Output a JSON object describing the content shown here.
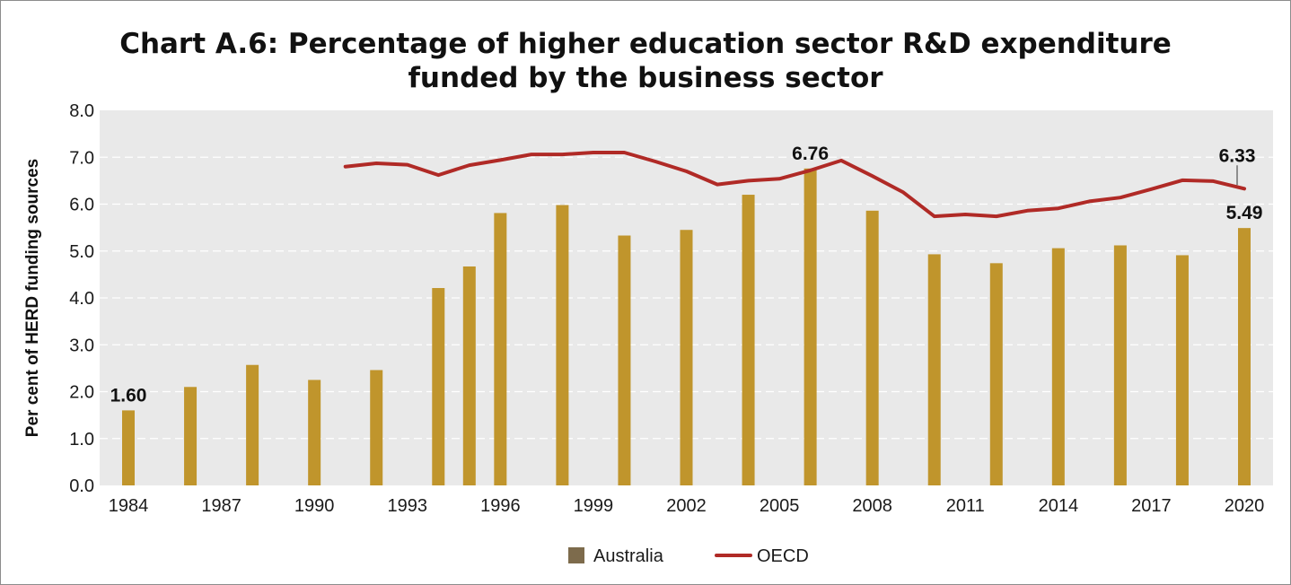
{
  "chart_data": {
    "type": "bar",
    "title": "Chart A.6: Percentage of higher education sector R&D expenditure funded by the business sector",
    "title_lines": [
      "Chart A.6: Percentage of higher education sector R&D expenditure",
      "funded by the business sector"
    ],
    "xlabel": "",
    "ylabel": "Per cent of HERD funding sources",
    "ylim": [
      0,
      8
    ],
    "yticks": [
      "0.0",
      "1.0",
      "2.0",
      "3.0",
      "4.0",
      "5.0",
      "6.0",
      "7.0",
      "8.0"
    ],
    "xlim": [
      1984,
      2020
    ],
    "xticks": [
      "1984",
      "1987",
      "1990",
      "1993",
      "1996",
      "1999",
      "2002",
      "2005",
      "2008",
      "2011",
      "2014",
      "2017",
      "2020"
    ],
    "grid": true,
    "legend_position": "bottom",
    "series": [
      {
        "name": "Australia",
        "type": "bar",
        "color": "#c0952c",
        "points": [
          {
            "x": 1984,
            "y": 1.6
          },
          {
            "x": 1986,
            "y": 2.1
          },
          {
            "x": 1988,
            "y": 2.57
          },
          {
            "x": 1990,
            "y": 2.25
          },
          {
            "x": 1992,
            "y": 2.46
          },
          {
            "x": 1994,
            "y": 4.21
          },
          {
            "x": 1995,
            "y": 4.67
          },
          {
            "x": 1996,
            "y": 5.81
          },
          {
            "x": 1998,
            "y": 5.98
          },
          {
            "x": 2000,
            "y": 5.33
          },
          {
            "x": 2002,
            "y": 5.45
          },
          {
            "x": 2004,
            "y": 6.2
          },
          {
            "x": 2006,
            "y": 6.76
          },
          {
            "x": 2008,
            "y": 5.86
          },
          {
            "x": 2010,
            "y": 4.93
          },
          {
            "x": 2012,
            "y": 4.74
          },
          {
            "x": 2014,
            "y": 5.06
          },
          {
            "x": 2016,
            "y": 5.12
          },
          {
            "x": 2018,
            "y": 4.91
          },
          {
            "x": 2020,
            "y": 5.49
          }
        ]
      },
      {
        "name": "OECD",
        "type": "line",
        "color": "#b02a26",
        "points": [
          {
            "x": 1991,
            "y": 6.8
          },
          {
            "x": 1992,
            "y": 6.87
          },
          {
            "x": 1993,
            "y": 6.84
          },
          {
            "x": 1994,
            "y": 6.62
          },
          {
            "x": 1995,
            "y": 6.83
          },
          {
            "x": 1996,
            "y": 6.94
          },
          {
            "x": 1997,
            "y": 7.06
          },
          {
            "x": 1998,
            "y": 7.06
          },
          {
            "x": 1999,
            "y": 7.1
          },
          {
            "x": 2000,
            "y": 7.1
          },
          {
            "x": 2001,
            "y": 6.91
          },
          {
            "x": 2002,
            "y": 6.7
          },
          {
            "x": 2003,
            "y": 6.42
          },
          {
            "x": 2004,
            "y": 6.5
          },
          {
            "x": 2005,
            "y": 6.54
          },
          {
            "x": 2006,
            "y": 6.72
          },
          {
            "x": 2007,
            "y": 6.93
          },
          {
            "x": 2008,
            "y": 6.6
          },
          {
            "x": 2009,
            "y": 6.25
          },
          {
            "x": 2010,
            "y": 5.74
          },
          {
            "x": 2011,
            "y": 5.78
          },
          {
            "x": 2012,
            "y": 5.74
          },
          {
            "x": 2013,
            "y": 5.86
          },
          {
            "x": 2014,
            "y": 5.91
          },
          {
            "x": 2015,
            "y": 6.06
          },
          {
            "x": 2016,
            "y": 6.14
          },
          {
            "x": 2017,
            "y": 6.32
          },
          {
            "x": 2018,
            "y": 6.51
          },
          {
            "x": 2019,
            "y": 6.49
          },
          {
            "x": 2020,
            "y": 6.33
          }
        ]
      }
    ],
    "annotations": [
      {
        "series": "Australia",
        "x": 1984,
        "text": "1.60"
      },
      {
        "series": "Australia",
        "x": 2006,
        "text": "6.76"
      },
      {
        "series": "Australia",
        "x": 2020,
        "text": "5.49"
      },
      {
        "series": "OECD",
        "x": 2020,
        "text": "6.33"
      }
    ]
  },
  "colors": {
    "plot_background": "#e9e9e9",
    "gridline": "#ffffff",
    "bar": "#c0952c",
    "line": "#b02a26",
    "legend_bar_swatch": "#7d6b4c"
  }
}
